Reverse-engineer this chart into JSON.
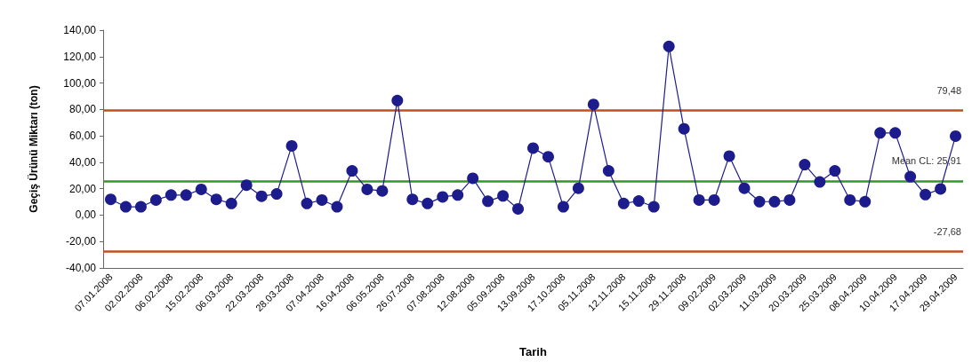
{
  "chart_data": {
    "type": "line",
    "xlabel": "Tarih",
    "ylabel": "Geçiş Ürünü Miktarı (ton)",
    "categories": [
      "07.01.2008",
      null,
      "02.02.2008",
      null,
      "06.02.2008",
      null,
      "15.02.2008",
      null,
      "06.03.2008",
      null,
      "22.03.2008",
      null,
      "28.03.2008",
      null,
      "07.04.2008",
      null,
      "16.04.2008",
      null,
      "06.05.2008",
      null,
      "26.07.2008",
      null,
      "07.08.2008",
      null,
      "12.08.2008",
      null,
      "05.09.2008",
      null,
      "13.09.2008",
      null,
      "17.10.2008",
      null,
      "05.11.2008",
      null,
      "12.11.2008",
      null,
      "15.11.2008",
      null,
      "29.11.2008",
      null,
      "09.02.2009",
      null,
      "02.03.2009",
      null,
      "11.03.2009",
      null,
      "20.03.2009",
      null,
      "25.03.2009",
      null,
      "08.04.2009",
      null,
      "10.04.2009",
      null,
      "17.04.2009",
      null,
      "29.04.2009"
    ],
    "series": [
      {
        "color": "#1c1c8c",
        "values": [
          11.9,
          6.3,
          6.3,
          11.4,
          15.2,
          15.2,
          19.5,
          11.9,
          8.8,
          22.7,
          14.3,
          16.0,
          52.4,
          8.8,
          11.4,
          6.3,
          33.5,
          19.5,
          18.3,
          86.7,
          11.9,
          8.8,
          13.8,
          15.2,
          27.9,
          10.5,
          14.5,
          4.7,
          50.7,
          44.2,
          6.3,
          20.3,
          83.8,
          33.5,
          8.8,
          10.7,
          6.3,
          127.7,
          65.3,
          11.4,
          11.4,
          44.7,
          20.3,
          10.2,
          10.2,
          11.4,
          38.2,
          25.1,
          33.5,
          11.4,
          10.2,
          62.2,
          62.2,
          29.1,
          15.5,
          19.8,
          59.8
        ]
      }
    ],
    "ylim": [
      -40,
      140
    ],
    "yticks": [
      {
        "value": -40,
        "label": "-40,00"
      },
      {
        "value": -20,
        "label": "-20,00"
      },
      {
        "value": 0,
        "label": "0,00"
      },
      {
        "value": 20,
        "label": "20,00"
      },
      {
        "value": 40,
        "label": "40,00"
      },
      {
        "value": 60,
        "label": "60,00"
      },
      {
        "value": 80,
        "label": "80,00"
      },
      {
        "value": 100,
        "label": "100,00"
      },
      {
        "value": 120,
        "label": "120,00"
      },
      {
        "value": 140,
        "label": "140,00"
      }
    ],
    "ref_lines": [
      {
        "axis": "y",
        "value": 79.48,
        "label": "79,48",
        "color": "#c0501e"
      },
      {
        "axis": "y",
        "value": 25.91,
        "label": "Mean CL: 25,91",
        "color": "#2e9a2e"
      },
      {
        "axis": "y",
        "value": -27.68,
        "label": "-27,68",
        "color": "#c0501e"
      }
    ],
    "marker": "circle",
    "line_style": "solid",
    "grid": false
  }
}
